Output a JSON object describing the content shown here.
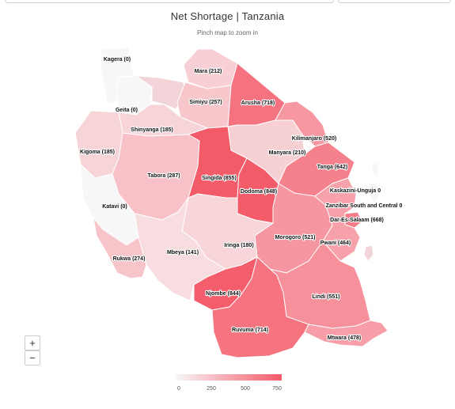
{
  "title": "Net Shortage | Tanzania",
  "subtitle": "Pinch map to zoom in",
  "zoom": {
    "in_label": "+",
    "out_label": "−"
  },
  "color_scale": {
    "min_color": "#f7f7f7",
    "mid_color": "#f7a7b0",
    "max_color": "#f45b69",
    "max_value": 855
  },
  "legend": {
    "ticks": [
      "0",
      "250",
      "500",
      "750"
    ]
  },
  "regions": [
    {
      "name": "Kagera",
      "value": 0,
      "label": "Kagera (0)"
    },
    {
      "name": "Mara",
      "value": 212,
      "label": "Mara (212)"
    },
    {
      "name": "Geita",
      "value": 0,
      "label": "Geita (0)"
    },
    {
      "name": "Simiyu",
      "value": 257,
      "label": "Simiyu (257)"
    },
    {
      "name": "Arusha",
      "value": 718,
      "label": "Arusha (718)"
    },
    {
      "name": "Shinyanga",
      "value": 185,
      "label": "Shinyanga (185)"
    },
    {
      "name": "Kilimanjaro",
      "value": 520,
      "label": "Kilimanjaro (520)"
    },
    {
      "name": "Kigoma",
      "value": 185,
      "label": "Kigoma (185)"
    },
    {
      "name": "Manyara",
      "value": 210,
      "label": "Manyara (210)"
    },
    {
      "name": "Tanga",
      "value": 642,
      "label": "Tanga (642)"
    },
    {
      "name": "Tabora",
      "value": 287,
      "label": "Tabora (287)"
    },
    {
      "name": "Singida",
      "value": 855,
      "label": "Singida (855)"
    },
    {
      "name": "Dodoma",
      "value": 848,
      "label": "Dodoma (848)"
    },
    {
      "name": "Kaskazini-Unguja",
      "value": 0,
      "label": "Kaskazini-Unguja 0"
    },
    {
      "name": "Zanzibar South and Central",
      "value": 0,
      "label": "Zanzibar South and Central 0"
    },
    {
      "name": "Dar-Es-Salaam",
      "value": 668,
      "label": "Dar-Es-Salaam (668)"
    },
    {
      "name": "Katavi",
      "value": 0,
      "label": "Katavi (0)"
    },
    {
      "name": "Morogoro",
      "value": 521,
      "label": "Morogoro (521)"
    },
    {
      "name": "Pwani",
      "value": 464,
      "label": "Pwani (464)"
    },
    {
      "name": "Iringa",
      "value": 180,
      "label": "Iringa (180)"
    },
    {
      "name": "Mbeya",
      "value": 141,
      "label": "Mbeya (141)"
    },
    {
      "name": "Rukwa",
      "value": 274,
      "label": "Rukwa (274)"
    },
    {
      "name": "Njombe",
      "value": 844,
      "label": "Njombe (844)"
    },
    {
      "name": "Lindi",
      "value": 551,
      "label": "Lindi (551)"
    },
    {
      "name": "Ruvuma",
      "value": 714,
      "label": "Ruvuma (714)"
    },
    {
      "name": "Mtwara",
      "value": 478,
      "label": "Mtwara (478)"
    }
  ]
}
